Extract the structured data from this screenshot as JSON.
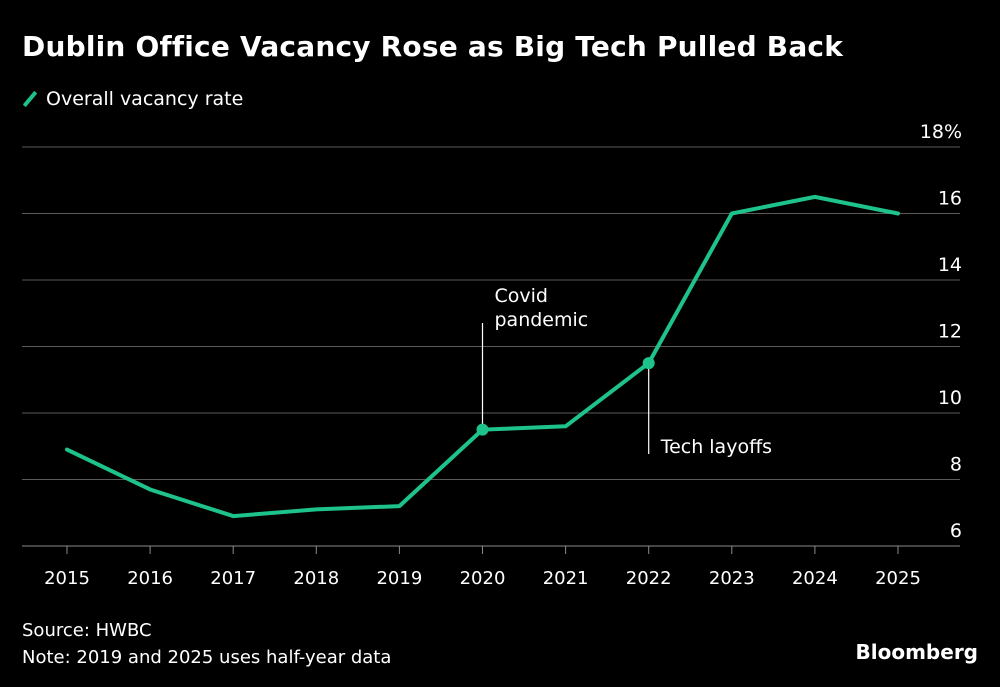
{
  "chart_data": {
    "type": "line",
    "title": "Dublin Office Vacancy Rose as Big Tech Pulled Back",
    "series": [
      {
        "name": "Overall vacancy rate",
        "color": "#1ec28b",
        "x": [
          2015,
          2016,
          2017,
          2018,
          2019,
          2020,
          2021,
          2022,
          2023,
          2024,
          2025
        ],
        "values": [
          8.9,
          7.7,
          6.9,
          7.1,
          7.2,
          9.5,
          9.6,
          11.5,
          16.0,
          16.5,
          16.0
        ]
      }
    ],
    "ylim": [
      6,
      18
    ],
    "yticks": [
      6,
      8,
      10,
      12,
      14,
      16,
      18
    ],
    "ytick_labels": [
      "6",
      "8",
      "10",
      "12",
      "14",
      "16",
      "18%"
    ],
    "xticks": [
      "2015",
      "2016",
      "2017",
      "2018",
      "2019",
      "2020",
      "2021",
      "2022",
      "2023",
      "2024",
      "2025"
    ],
    "grid": true,
    "annotations": [
      {
        "x": 2020,
        "y": 9.5,
        "lines": [
          "Covid",
          "pandemic"
        ],
        "direction": "up"
      },
      {
        "x": 2022,
        "y": 11.5,
        "lines": [
          "Tech layoffs"
        ],
        "direction": "down"
      }
    ]
  },
  "legend": {
    "label": "Overall vacancy rate"
  },
  "footer": {
    "source": "Source: HWBC",
    "note": "Note: 2019 and 2025 uses half-year data"
  },
  "brand": "Bloomberg",
  "colors": {
    "accent": "#1ec28b",
    "grid": "#5a5a5a",
    "background": "#000000"
  }
}
